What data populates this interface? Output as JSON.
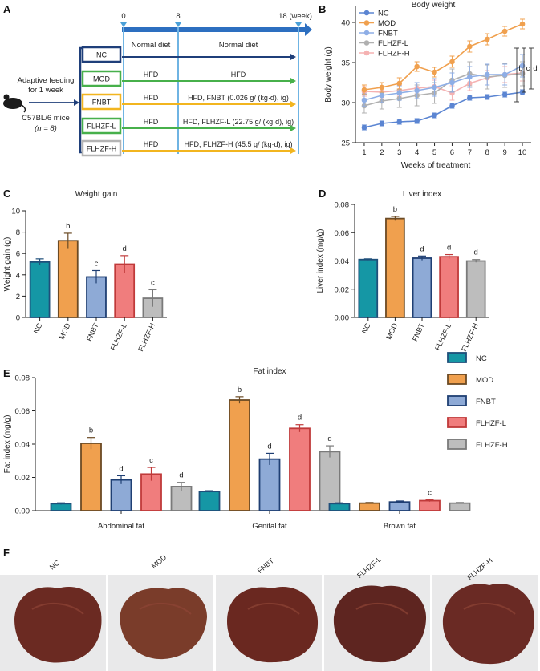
{
  "colors": {
    "NC": "#1597a5",
    "MOD": "#f0a04e",
    "FNBT": "#8eaad6",
    "FLHZF-L": "#f07d7d",
    "FLHZF-H": "#bdbdbd",
    "NC_edge": "#1f4f7a",
    "MOD_edge": "#6b4a24",
    "FNBT_edge": "#1f3f73",
    "FLHZF-L_edge": "#c03a3a",
    "FLHZF-H_edge": "#7a7a7a",
    "NC_line": "#5b85d2",
    "MOD_line": "#f0a04e",
    "FNBT_line": "#8eaee6",
    "FLHZF-L_line": "#b0b0b0",
    "FLHZF-H_line": "#f5b2b2",
    "arrow_blue": "#2d6fc0",
    "arrow_dark": "#1f3f7a",
    "arrow_green": "#47b04b",
    "arrow_yellow": "#f2b51f",
    "box_gray": "#b4b4b4"
  },
  "panelA": {
    "letter": "A",
    "adaptive_line1": "Adaptive feeding",
    "adaptive_line2": "for 1 week",
    "mice_line1": "C57BL/6 mice",
    "mice_line2": "(n = 8)",
    "timeline": [
      "0",
      "8",
      "18 (week)"
    ],
    "header_left": "Normal diet",
    "header_right": "Normal diet",
    "groups": [
      {
        "label": "NC",
        "early": "",
        "late": "",
        "color": "arrow_dark"
      },
      {
        "label": "MOD",
        "early": "HFD",
        "late": "HFD",
        "color": "arrow_green"
      },
      {
        "label": "FNBT",
        "early": "HFD",
        "late": "HFD, FNBT (0.026 g/ (kg·d), ig)",
        "color": "arrow_yellow"
      },
      {
        "label": "FLHZF-L",
        "early": "HFD",
        "late": "HFD, FLHZF-L (22.75 g/ (kg·d), ig)",
        "color": "arrow_green"
      },
      {
        "label": "FLHZF-H",
        "early": "HFD",
        "late": "HFD, FLHZF-H (45.5 g/ (kg·d), ig)",
        "color": "arrow_yellow"
      }
    ],
    "box_colors": [
      "arrow_dark",
      "arrow_green",
      "arrow_yellow",
      "arrow_green",
      "box_gray"
    ]
  },
  "panelF": {
    "letter": "F",
    "labels": [
      "NC",
      "MOD",
      "FNBT",
      "FLHZF-L",
      "FLHZF-H"
    ]
  },
  "chart_data": [
    {
      "panel": "B",
      "type": "line",
      "title": "Body weight",
      "xlabel": "Weeks of treatment",
      "ylabel": "Body weight (g)",
      "x": [
        1,
        2,
        3,
        4,
        5,
        6,
        7,
        8,
        9,
        10
      ],
      "xlim": [
        0.5,
        10.5
      ],
      "ylim": [
        25,
        42
      ],
      "yticks": [
        25,
        30,
        35,
        40
      ],
      "legend_position": "top-left",
      "series": [
        {
          "name": "NC",
          "values": [
            26.9,
            27.4,
            27.6,
            27.7,
            28.4,
            29.6,
            30.6,
            30.7,
            31.0,
            31.3
          ],
          "err": [
            0.3,
            0.3,
            0.3,
            0.3,
            0.3,
            0.3,
            0.3,
            0.3,
            0.3,
            0.3
          ]
        },
        {
          "name": "MOD",
          "values": [
            31.6,
            31.9,
            32.4,
            34.5,
            33.8,
            35.1,
            37.0,
            37.9,
            38.9,
            39.8
          ],
          "err": [
            0.6,
            0.6,
            0.7,
            0.6,
            0.6,
            0.7,
            0.7,
            0.7,
            0.6,
            0.6
          ]
        },
        {
          "name": "FNBT",
          "values": [
            30.3,
            30.9,
            31.2,
            31.5,
            31.9,
            32.5,
            33.2,
            33.5,
            33.5,
            34.6
          ],
          "err": [
            0.8,
            0.9,
            0.9,
            1.0,
            1.1,
            1.2,
            1.3,
            1.3,
            1.3,
            1.4
          ]
        },
        {
          "name": "FLHZF-L",
          "values": [
            29.6,
            30.2,
            30.5,
            30.9,
            31.2,
            32.8,
            33.6,
            33.2,
            33.4,
            33.6
          ],
          "err": [
            0.9,
            1.0,
            1.1,
            1.3,
            1.3,
            1.4,
            1.5,
            1.5,
            1.5,
            1.5
          ]
        },
        {
          "name": "FLHZF-H",
          "values": [
            31.4,
            31.3,
            31.5,
            31.8,
            32.0,
            31.2,
            32.4,
            33.1,
            33.5,
            33.7
          ],
          "err": [
            0.6,
            0.7,
            0.7,
            0.7,
            0.8,
            0.9,
            0.9,
            0.9,
            1.0,
            1.0
          ]
        }
      ],
      "significance_letters": [
        "b",
        "c",
        "d"
      ]
    },
    {
      "panel": "C",
      "type": "bar",
      "title": "Weight gain",
      "ylabel": "Weight gain (g)",
      "categories": [
        "NC",
        "MOD",
        "FNBT",
        "FLHZF-L",
        "FLHZF-H"
      ],
      "values": [
        5.2,
        7.2,
        3.8,
        5.0,
        1.8
      ],
      "err": [
        0.3,
        0.7,
        0.6,
        0.8,
        0.8
      ],
      "letters": [
        "",
        "b",
        "c",
        "d",
        "c"
      ],
      "ylim": [
        0,
        10
      ],
      "yticks": [
        0,
        2,
        4,
        6,
        8,
        10
      ]
    },
    {
      "panel": "D",
      "type": "bar",
      "title": "Liver index",
      "ylabel": "Liver index (mg/g)",
      "categories": [
        "NC",
        "MOD",
        "FNBT",
        "FLHZF-L",
        "FLHZF-H"
      ],
      "values": [
        0.041,
        0.07,
        0.042,
        0.043,
        0.04
      ],
      "err": [
        0.0005,
        0.0015,
        0.0015,
        0.0015,
        0.001
      ],
      "letters": [
        "",
        "b",
        "d",
        "d",
        "d"
      ],
      "ylim": [
        0,
        0.08
      ],
      "yticks": [
        "0.00",
        "0.02",
        "0.04",
        "0.06",
        "0.08"
      ]
    },
    {
      "panel": "E",
      "type": "bar",
      "title": "Fat index",
      "ylabel": "Fat index (mg/g)",
      "categories": [
        "Abdominal fat",
        "Genital fat",
        "Brown fat"
      ],
      "ylim": [
        0,
        0.08
      ],
      "yticks": [
        "0.00",
        "0.02",
        "0.04",
        "0.06",
        "0.08"
      ],
      "legend_position": "right",
      "series": [
        {
          "name": "NC",
          "values": [
            0.0042,
            0.0115,
            0.0042
          ],
          "err": [
            0.0005,
            0.0005,
            0.0005
          ],
          "letters": [
            "",
            "",
            ""
          ]
        },
        {
          "name": "MOD",
          "values": [
            0.0405,
            0.0665,
            0.0045
          ],
          "err": [
            0.0035,
            0.002,
            0.0004
          ],
          "letters": [
            "b",
            "b",
            ""
          ]
        },
        {
          "name": "FNBT",
          "values": [
            0.0185,
            0.031,
            0.0052
          ],
          "err": [
            0.0025,
            0.0035,
            0.0006
          ],
          "letters": [
            "d",
            "d",
            ""
          ]
        },
        {
          "name": "FLHZF-L",
          "values": [
            0.022,
            0.0495,
            0.006
          ],
          "err": [
            0.004,
            0.0022,
            0.0006
          ],
          "letters": [
            "c",
            "d",
            "c"
          ]
        },
        {
          "name": "FLHZF-H",
          "values": [
            0.0145,
            0.0355,
            0.0045
          ],
          "err": [
            0.0025,
            0.0035,
            0.0004
          ],
          "letters": [
            "d",
            "d",
            ""
          ]
        }
      ]
    }
  ]
}
